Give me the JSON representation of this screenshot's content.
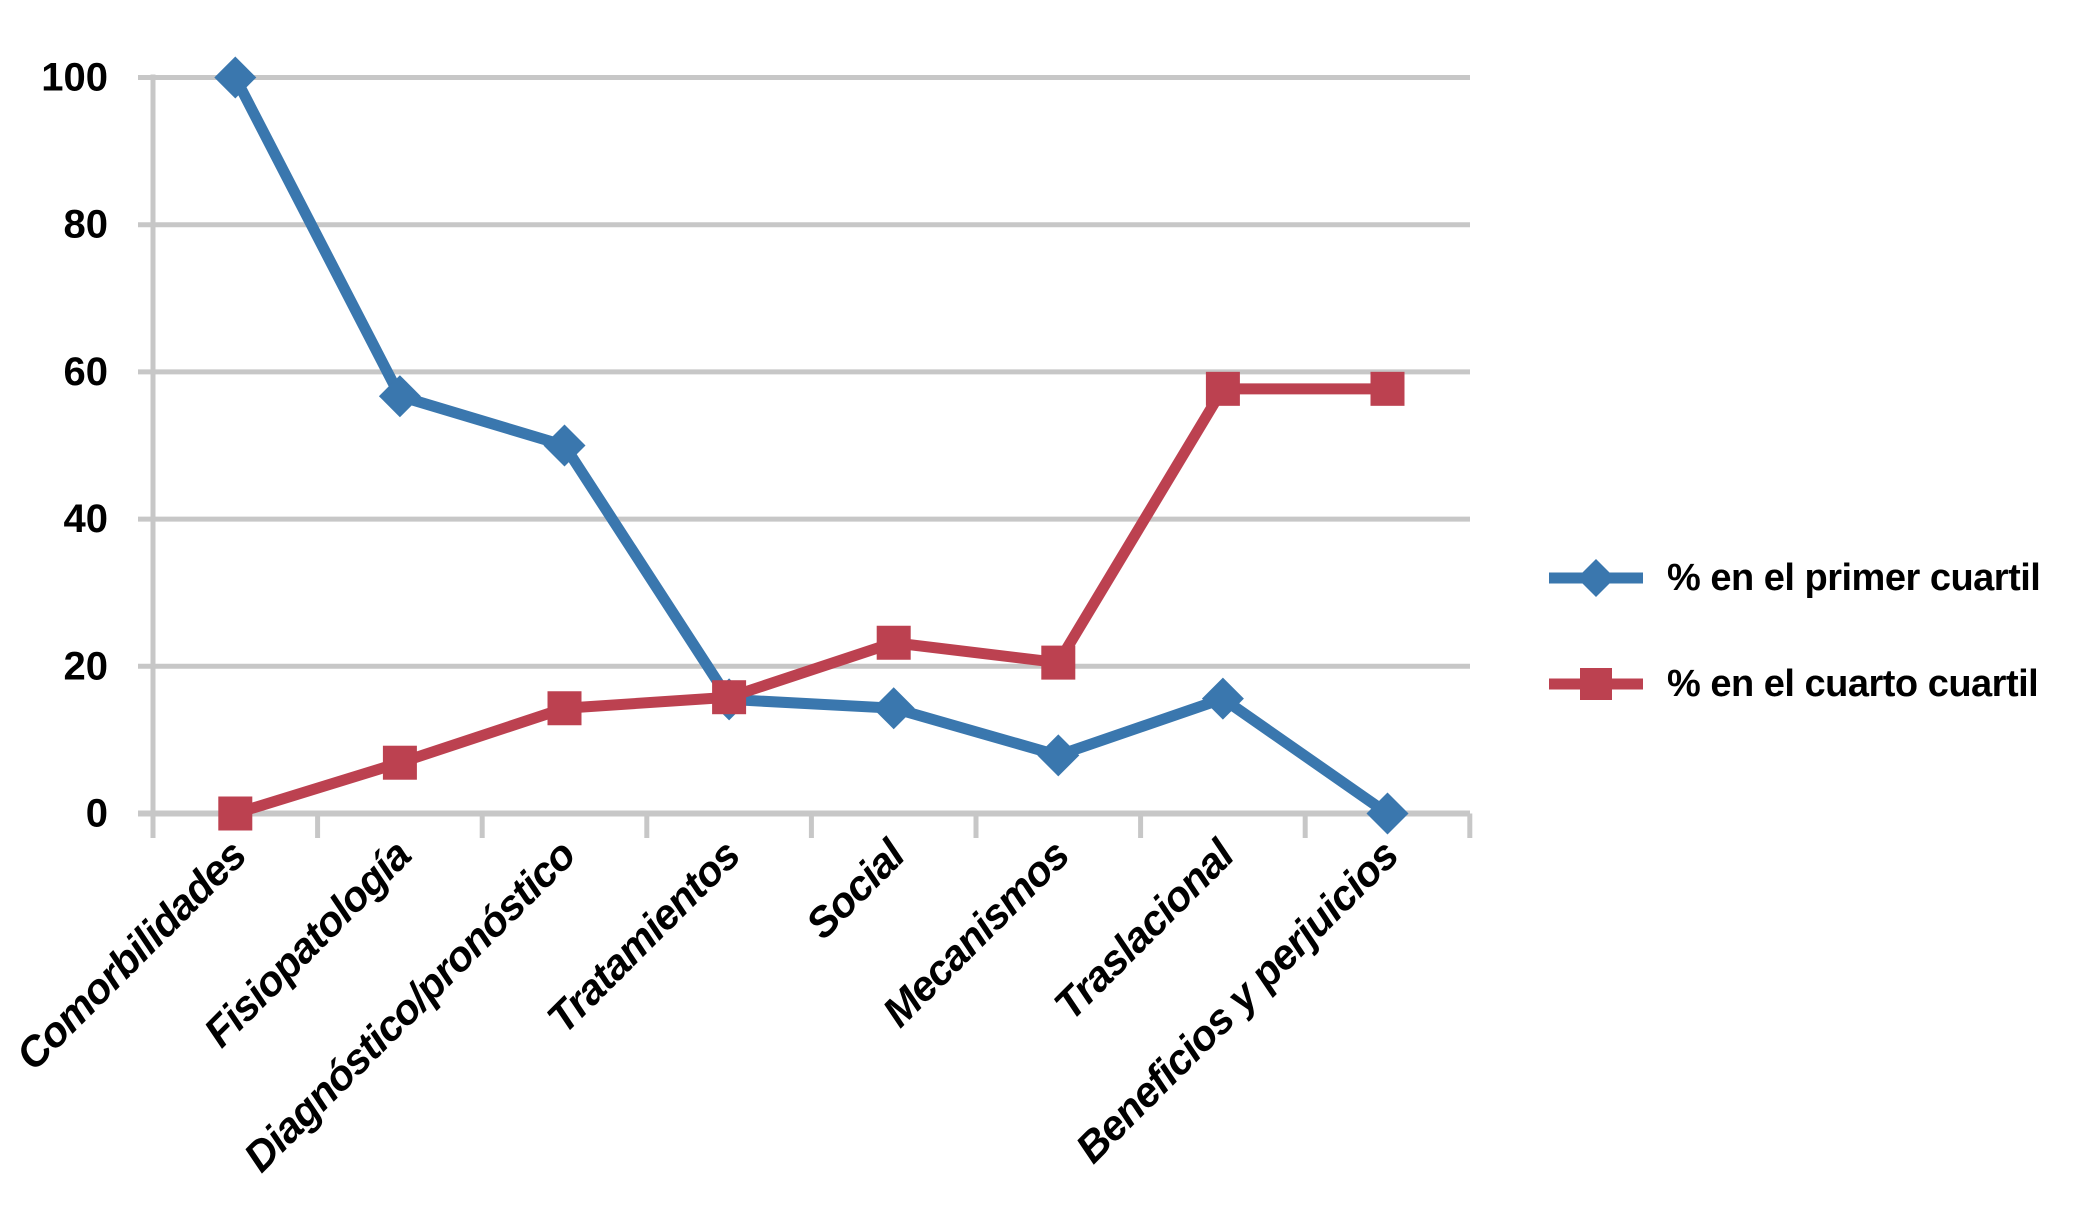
{
  "background_color": "#ffffff",
  "text_color": "#000000",
  "chart_data": {
    "type": "line",
    "title": "",
    "xlabel": "",
    "ylabel": "",
    "categories": [
      "Comorbilidades",
      "Fisiopatología",
      "Diagnóstico/pronóstico",
      "Tratamientos",
      "Social",
      "Mecanismos",
      "Traslacional",
      "Beneficios y perjuicios"
    ],
    "series": [
      {
        "name": "% en el primer cuartil",
        "marker": "diamond",
        "color": "#3A77AE",
        "values": [
          100,
          56.7,
          50,
          15.5,
          14.3,
          7.9,
          15.6,
          0
        ]
      },
      {
        "name": "% en el cuarto cuartil",
        "marker": "square",
        "color": "#BC4150",
        "values": [
          0,
          6.9,
          14.3,
          15.8,
          23.2,
          20.5,
          57.7,
          57.7
        ]
      }
    ],
    "ylim": [
      0,
      100
    ],
    "yticks": [
      0,
      20,
      40,
      60,
      80,
      100
    ],
    "grid": true,
    "gridline_color": "#C7C7C7",
    "legend_position": "right",
    "category_label_rotation_deg": -45
  }
}
